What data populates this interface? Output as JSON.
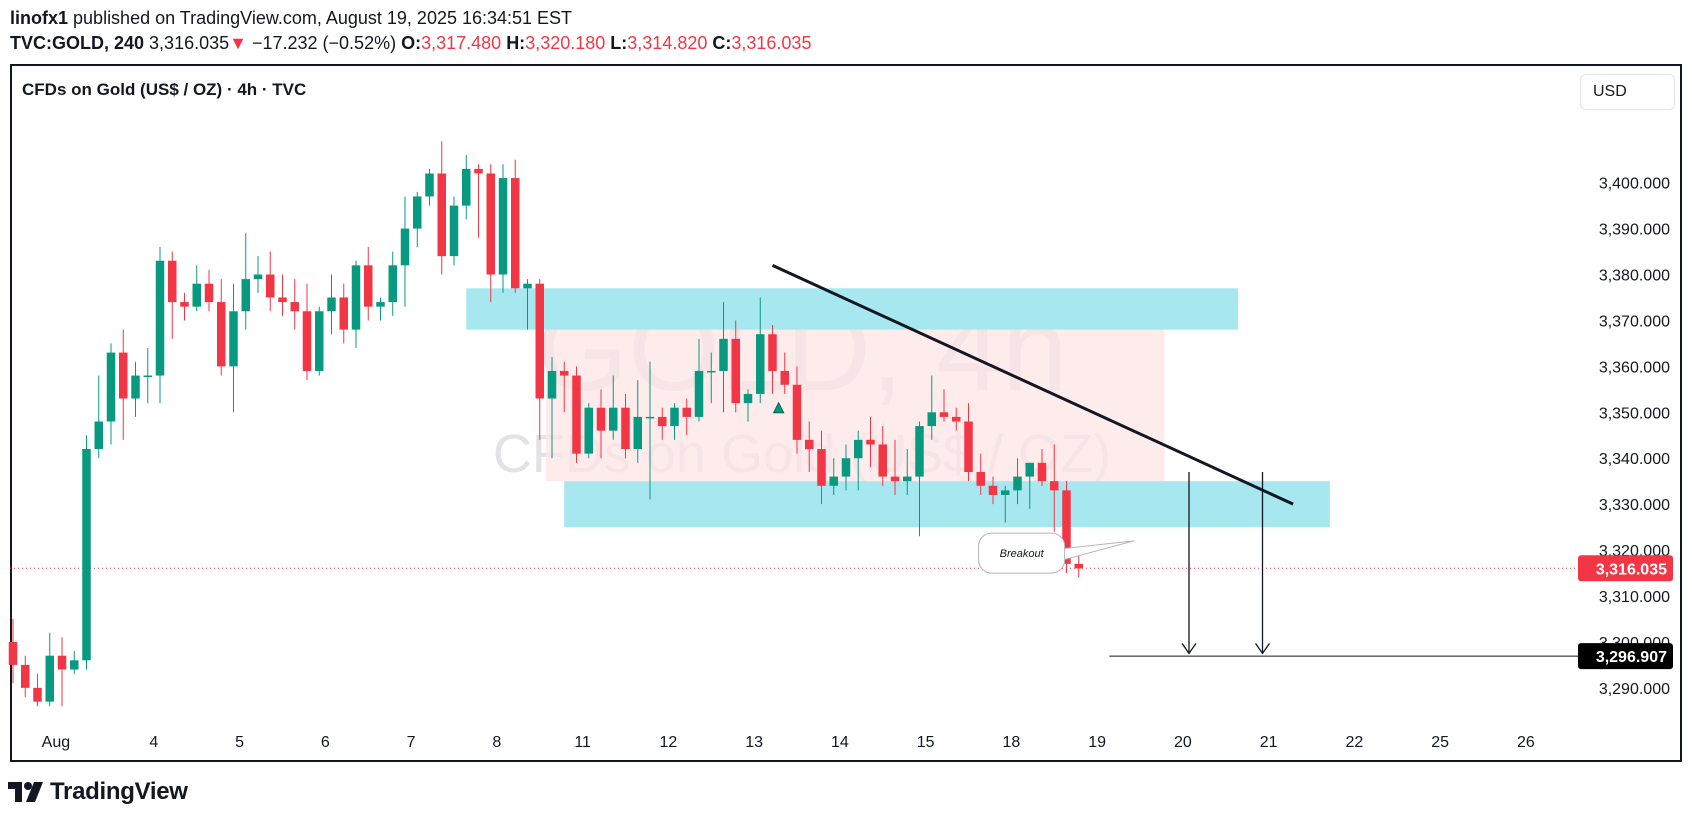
{
  "header": {
    "publisher": "linofx1",
    "published_text": "published on TradingView.com, August 19, 2025 16:34:51 EST",
    "symbol": "TVC:GOLD, 240",
    "last": "3,316.035",
    "change_arrow": "▼",
    "change": "−17.232 (−0.52%)",
    "o_label": "O:",
    "o_value": "3,317.480",
    "h_label": "H:",
    "h_value": "3,320.180",
    "l_label": "L:",
    "l_value": "3,314.820",
    "c_label": "C:",
    "c_value": "3,316.035"
  },
  "chart_title": "CFDs on Gold (US$ / OZ) · 4h · TVC",
  "currency_button": "USD",
  "watermark": {
    "big": "GOLD, 4h",
    "small": "CFDs on Gold (US$ / OZ)"
  },
  "footer": {
    "brand": "TradingView",
    "logo_icon": "tradingview-logo-icon"
  },
  "colors": {
    "up": "#089981",
    "down": "#f23645",
    "zone": "#a6e7f0",
    "range_box": "#fde4e6",
    "line": "#131722",
    "watermark": "#e3e3e7"
  },
  "chart_data": {
    "type": "candlestick",
    "ylim": [
      3283,
      3418
    ],
    "y_ticks": [
      3290,
      3300,
      3310,
      3320,
      3330,
      3340,
      3350,
      3360,
      3370,
      3380,
      3390,
      3400
    ],
    "y_tick_labels": [
      "3,290.000",
      "3,300.000",
      "3,310.000",
      "3,320.000",
      "3,330.000",
      "3,340.000",
      "3,350.000",
      "3,360.000",
      "3,370.000",
      "3,380.000",
      "3,390.000",
      "3,400.000"
    ],
    "x_labels": [
      {
        "label": "Aug",
        "x": 3.5
      },
      {
        "label": "4",
        "x": 11.5
      },
      {
        "label": "5",
        "x": 18.5
      },
      {
        "label": "6",
        "x": 25.5
      },
      {
        "label": "7",
        "x": 32.5
      },
      {
        "label": "8",
        "x": 39.5
      },
      {
        "label": "11",
        "x": 46.5
      },
      {
        "label": "12",
        "x": 53.5
      },
      {
        "label": "13",
        "x": 60.5
      },
      {
        "label": "14",
        "x": 67.5
      },
      {
        "label": "15",
        "x": 74.5
      },
      {
        "label": "18",
        "x": 81.5
      },
      {
        "label": "19",
        "x": 88.5
      },
      {
        "label": "20",
        "x": 95.5
      },
      {
        "label": "21",
        "x": 102.5
      },
      {
        "label": "22",
        "x": 109.5
      },
      {
        "label": "25",
        "x": 116.5
      },
      {
        "label": "26",
        "x": 123.5
      }
    ],
    "candles": [
      [
        3300.0,
        3305.0,
        3291.0,
        3295.0
      ],
      [
        3295.0,
        3297.0,
        3288.0,
        3290.0
      ],
      [
        3290.0,
        3293.0,
        3286.0,
        3287.0
      ],
      [
        3287.0,
        3302.0,
        3286.0,
        3297.0
      ],
      [
        3297.0,
        3301.0,
        3286.0,
        3294.0
      ],
      [
        3294.0,
        3298.0,
        3293.0,
        3296.0
      ],
      [
        3296.0,
        3345.0,
        3294.0,
        3342.0
      ],
      [
        3342.0,
        3358.0,
        3340.0,
        3348.0
      ],
      [
        3348.0,
        3365.0,
        3343.0,
        3363.0
      ],
      [
        3363.0,
        3368.0,
        3344.0,
        3353.0
      ],
      [
        3353.0,
        3361.0,
        3349.0,
        3358.0
      ],
      [
        3358.0,
        3364.0,
        3352.0,
        3358.0
      ],
      [
        3358.0,
        3386.0,
        3352.0,
        3383.0
      ],
      [
        3383.0,
        3385.0,
        3366.0,
        3374.0
      ],
      [
        3374.0,
        3376.0,
        3370.0,
        3373.0
      ],
      [
        3373.0,
        3382.0,
        3372.0,
        3378.0
      ],
      [
        3378.0,
        3381.0,
        3372.0,
        3374.0
      ],
      [
        3374.0,
        3379.0,
        3358.0,
        3360.0
      ],
      [
        3360.0,
        3378.0,
        3350.0,
        3372.0
      ],
      [
        3372.0,
        3389.0,
        3368.0,
        3379.0
      ],
      [
        3379.0,
        3384.0,
        3376.0,
        3380.0
      ],
      [
        3380.0,
        3385.0,
        3372.0,
        3375.0
      ],
      [
        3375.0,
        3380.0,
        3371.0,
        3374.0
      ],
      [
        3374.0,
        3379.0,
        3368.0,
        3372.0
      ],
      [
        3372.0,
        3378.0,
        3357.0,
        3359.0
      ],
      [
        3359.0,
        3373.0,
        3358.0,
        3372.0
      ],
      [
        3372.0,
        3380.0,
        3367.0,
        3375.0
      ],
      [
        3375.0,
        3378.0,
        3365.0,
        3368.0
      ],
      [
        3368.0,
        3383.0,
        3364.0,
        3382.0
      ],
      [
        3382.0,
        3386.0,
        3370.0,
        3373.0
      ],
      [
        3373.0,
        3375.0,
        3370.0,
        3374.0
      ],
      [
        3374.0,
        3385.0,
        3371.0,
        3382.0
      ],
      [
        3382.0,
        3397.0,
        3373.0,
        3390.0
      ],
      [
        3390.0,
        3398.0,
        3386.0,
        3397.0
      ],
      [
        3397.0,
        3403.0,
        3395.0,
        3402.0
      ],
      [
        3402.0,
        3409.0,
        3380.0,
        3384.0
      ],
      [
        3384.0,
        3397.0,
        3382.0,
        3395.0
      ],
      [
        3395.0,
        3406.0,
        3392.0,
        3403.0
      ],
      [
        3403.0,
        3404.0,
        3388.0,
        3402.0
      ],
      [
        3402.0,
        3404.0,
        3374.0,
        3380.0
      ],
      [
        3380.0,
        3404.0,
        3376.0,
        3401.0
      ],
      [
        3401.0,
        3405.0,
        3376.0,
        3377.0
      ],
      [
        3377.0,
        3379.0,
        3368.0,
        3378.0
      ],
      [
        3378.0,
        3379.0,
        3344.0,
        3353.0
      ],
      [
        3353.0,
        3362.0,
        3340.0,
        3359.0
      ],
      [
        3359.0,
        3361.0,
        3350.0,
        3358.0
      ],
      [
        3358.0,
        3360.0,
        3339.0,
        3341.0
      ],
      [
        3341.0,
        3352.0,
        3340.0,
        3351.0
      ],
      [
        3351.0,
        3355.0,
        3340.0,
        3346.0
      ],
      [
        3346.0,
        3358.0,
        3344.0,
        3351.0
      ],
      [
        3351.0,
        3354.0,
        3340.0,
        3342.0
      ],
      [
        3342.0,
        3357.0,
        3339.0,
        3349.0
      ],
      [
        3349.0,
        3361.0,
        3331.0,
        3349.0
      ],
      [
        3349.0,
        3351.0,
        3344.0,
        3347.0
      ],
      [
        3347.0,
        3352.0,
        3344.0,
        3351.0
      ],
      [
        3351.0,
        3353.0,
        3345.0,
        3349.0
      ],
      [
        3349.0,
        3366.0,
        3348.0,
        3359.0
      ],
      [
        3359.0,
        3363.0,
        3352.0,
        3359.0
      ],
      [
        3359.0,
        3374.0,
        3350.0,
        3366.0
      ],
      [
        3366.0,
        3370.0,
        3350.0,
        3352.0
      ],
      [
        3352.0,
        3355.0,
        3348.0,
        3354.0
      ],
      [
        3354.0,
        3375.0,
        3352.0,
        3367.0
      ],
      [
        3367.0,
        3369.0,
        3354.0,
        3359.0
      ],
      [
        3359.0,
        3363.0,
        3354.0,
        3356.0
      ],
      [
        3356.0,
        3360.0,
        3341.0,
        3344.0
      ],
      [
        3344.0,
        3348.0,
        3337.0,
        3342.0
      ],
      [
        3342.0,
        3346.0,
        3330.0,
        3334.0
      ],
      [
        3334.0,
        3340.0,
        3332.0,
        3336.0
      ],
      [
        3336.0,
        3343.0,
        3333.0,
        3340.0
      ],
      [
        3340.0,
        3346.0,
        3333.0,
        3344.0
      ],
      [
        3344.0,
        3349.0,
        3338.0,
        3343.0
      ],
      [
        3343.0,
        3347.0,
        3334.0,
        3336.0
      ],
      [
        3336.0,
        3344.0,
        3332.0,
        3335.0
      ],
      [
        3335.0,
        3342.0,
        3332.0,
        3336.0
      ],
      [
        3336.0,
        3348.0,
        3323.0,
        3347.0
      ],
      [
        3347.0,
        3358.0,
        3344.0,
        3350.0
      ],
      [
        3350.0,
        3355.0,
        3348.0,
        3349.0
      ],
      [
        3349.0,
        3351.0,
        3346.0,
        3348.0
      ],
      [
        3348.0,
        3352.0,
        3335.0,
        3337.0
      ],
      [
        3337.0,
        3341.0,
        3332.0,
        3334.0
      ],
      [
        3334.0,
        3336.0,
        3330.0,
        3332.0
      ],
      [
        3332.0,
        3334.0,
        3326.0,
        3333.0
      ],
      [
        3333.0,
        3340.0,
        3330.0,
        3336.0
      ],
      [
        3336.0,
        3339.0,
        3329.0,
        3339.0
      ],
      [
        3339.0,
        3342.0,
        3334.0,
        3335.0
      ],
      [
        3335.0,
        3343.0,
        3324.0,
        3333.0
      ],
      [
        3333.0,
        3335.0,
        3315.0,
        3317.0
      ],
      [
        3317.0,
        3320.0,
        3314.0,
        3316.0
      ]
    ],
    "candle_count_shown": 88,
    "support_zone": {
      "from_x": 45.0,
      "to_x": 107.5,
      "y_low": 3325.0,
      "y_high": 3335.0
    },
    "resistance_zone": {
      "from_x": 37.0,
      "to_x": 100.0,
      "y_low": 3368.0,
      "y_high": 3377.0
    },
    "range_box": {
      "from_x": 43.5,
      "to_x": 94.0,
      "y_low": 3335.0,
      "y_high": 3368.0
    },
    "trendline": {
      "x1": 62.0,
      "y1": 3382.0,
      "x2": 104.5,
      "y2": 3330.0
    },
    "target_line": {
      "from_x": 89.5,
      "y": 3296.907
    },
    "arrows": [
      {
        "x": 96.0,
        "from_y": 3337.0,
        "to_y": 3297.5
      },
      {
        "x": 102.0,
        "from_y": 3337.0,
        "to_y": 3297.5
      }
    ],
    "callout": {
      "text": "Breakout",
      "anchor_x": 82.5,
      "anchor_y": 3320.0,
      "pointer_x": 91.5,
      "pointer_y": 3322.0
    },
    "last_price_label": "3,316.035",
    "last_price": 3316.035,
    "target_label": "3,296.907",
    "target_price": 3296.907,
    "marker": {
      "type": "triangle-up",
      "x": 62.5,
      "y": 3351.0
    }
  }
}
